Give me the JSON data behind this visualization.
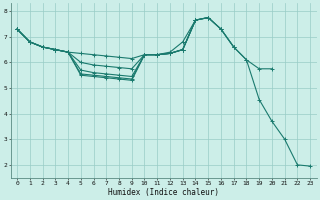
{
  "xlabel": "Humidex (Indice chaleur)",
  "bg_color": "#cceee8",
  "grid_color": "#99ccc6",
  "line_color": "#1a7a6e",
  "xlim": [
    -0.5,
    23.5
  ],
  "ylim": [
    1.5,
    8.3
  ],
  "yticks": [
    2,
    3,
    4,
    5,
    6,
    7,
    8
  ],
  "xticks": [
    0,
    1,
    2,
    3,
    4,
    5,
    6,
    7,
    8,
    9,
    10,
    11,
    12,
    13,
    14,
    15,
    16,
    17,
    18,
    19,
    20,
    21,
    22,
    23
  ],
  "lines": [
    {
      "x": [
        0,
        1,
        2,
        3,
        4,
        5,
        6,
        7,
        8,
        9,
        10,
        11,
        12,
        13,
        14,
        15,
        16,
        17,
        18,
        19,
        20,
        21,
        22,
        23
      ],
      "y": [
        7.3,
        6.8,
        6.6,
        6.5,
        6.4,
        6.35,
        6.3,
        6.25,
        6.2,
        6.15,
        6.3,
        6.3,
        6.4,
        6.8,
        7.65,
        7.75,
        7.3,
        6.6,
        6.1,
        4.55,
        3.7,
        3.0,
        2.0,
        1.95
      ]
    },
    {
      "x": [
        0,
        1,
        2,
        3,
        4,
        5,
        6,
        7,
        8,
        9,
        10,
        11,
        12,
        13,
        14,
        15,
        16,
        17,
        18,
        19,
        20
      ],
      "y": [
        7.3,
        6.8,
        6.6,
        6.5,
        6.4,
        6.0,
        5.9,
        5.85,
        5.8,
        5.75,
        6.3,
        6.3,
        6.35,
        6.5,
        7.65,
        7.75,
        7.3,
        6.6,
        6.1,
        5.75,
        5.75
      ]
    },
    {
      "x": [
        0,
        1,
        2,
        3,
        4,
        5,
        6,
        7,
        8,
        9,
        10,
        11,
        12,
        13,
        14,
        15,
        16,
        17
      ],
      "y": [
        7.3,
        6.8,
        6.6,
        6.5,
        6.4,
        5.7,
        5.6,
        5.55,
        5.5,
        5.45,
        6.3,
        6.3,
        6.35,
        6.5,
        7.65,
        7.75,
        7.3,
        6.6
      ]
    },
    {
      "x": [
        0,
        1,
        2,
        3,
        4,
        5,
        6,
        7,
        8,
        9,
        10,
        11,
        12,
        13,
        14,
        15
      ],
      "y": [
        7.3,
        6.8,
        6.6,
        6.5,
        6.4,
        5.55,
        5.5,
        5.45,
        5.4,
        5.35,
        6.3,
        6.3,
        6.35,
        6.5,
        7.65,
        7.75
      ]
    },
    {
      "x": [
        0,
        1,
        2,
        3,
        4,
        5,
        6,
        7,
        8,
        9,
        10,
        11,
        12,
        13,
        14
      ],
      "y": [
        7.3,
        6.8,
        6.6,
        6.5,
        6.4,
        5.5,
        5.45,
        5.4,
        5.35,
        5.3,
        6.3,
        6.3,
        6.35,
        6.5,
        7.65
      ]
    }
  ]
}
